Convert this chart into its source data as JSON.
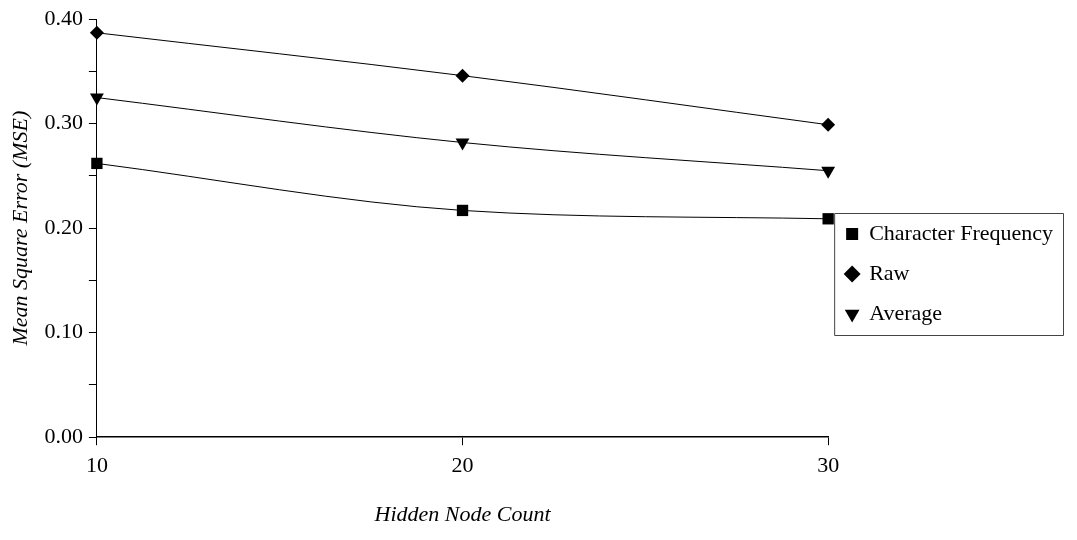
{
  "chart_data": {
    "type": "line",
    "xlabel": "Hidden Node Count",
    "ylabel": "Mean Square Error (MSE)",
    "x": [
      10,
      20,
      30
    ],
    "series": [
      {
        "name": "Character Frequency",
        "color": "#000000",
        "marker": "square",
        "values": [
          0.262,
          0.217,
          0.209
        ]
      },
      {
        "name": "Raw",
        "color": "#000000",
        "marker": "diamond",
        "values": [
          0.387,
          0.346,
          0.299
        ]
      },
      {
        "name": "Average",
        "color": "#000000",
        "marker": "triangle",
        "values": [
          0.325,
          0.282,
          0.255
        ]
      }
    ],
    "xlim": [
      10,
      30
    ],
    "xticks": [
      10,
      20,
      30
    ],
    "ylim": [
      0,
      0.4
    ],
    "yticks": [
      {
        "value": 0,
        "label": "0.00"
      },
      {
        "value": 0.05,
        "label": null
      },
      {
        "value": 0.1,
        "label": "0.10"
      },
      {
        "value": 0.15,
        "label": null
      },
      {
        "value": 0.2,
        "label": "0.20"
      },
      {
        "value": 0.25,
        "label": null
      },
      {
        "value": 0.3,
        "label": "0.30"
      },
      {
        "value": 0.35,
        "label": null
      },
      {
        "value": 0.4,
        "label": "0.40"
      }
    ],
    "grid": false,
    "legend": "right",
    "line_style": "solid"
  }
}
